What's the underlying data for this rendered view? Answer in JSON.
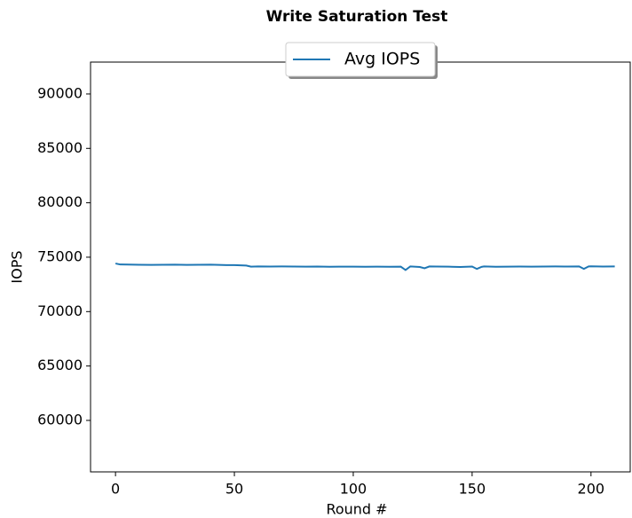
{
  "chart_data": {
    "type": "line",
    "title": "Write Saturation Test",
    "x_label": "Round #",
    "y_label": "IOPS",
    "x": [
      0,
      2,
      5,
      10,
      15,
      20,
      25,
      30,
      35,
      40,
      45,
      50,
      55,
      57,
      60,
      65,
      70,
      75,
      80,
      85,
      90,
      95,
      100,
      105,
      110,
      115,
      120,
      122,
      124,
      128,
      130,
      132,
      135,
      140,
      145,
      150,
      152,
      154,
      155,
      160,
      165,
      170,
      175,
      180,
      185,
      190,
      195,
      197,
      199,
      200,
      205,
      210
    ],
    "series": [
      {
        "name": "Avg IOPS",
        "color": "#1f77b4",
        "values": [
          74420,
          74330,
          74320,
          74300,
          74290,
          74300,
          74310,
          74290,
          74300,
          74310,
          74280,
          74270,
          74230,
          74130,
          74150,
          74140,
          74150,
          74140,
          74130,
          74140,
          74120,
          74130,
          74130,
          74120,
          74130,
          74120,
          74130,
          73820,
          74150,
          74100,
          73980,
          74150,
          74140,
          74130,
          74100,
          74140,
          73920,
          74110,
          74150,
          74120,
          74130,
          74140,
          74130,
          74140,
          74150,
          74140,
          74150,
          73930,
          74150,
          74160,
          74140,
          74150
        ]
      }
    ],
    "xlim": [
      -10.5,
      216.5
    ],
    "ylim": [
      55270,
      92930
    ],
    "xticks": [
      0,
      50,
      100,
      150,
      200
    ],
    "yticks": [
      60000,
      65000,
      70000,
      75000,
      80000,
      85000,
      90000
    ],
    "legend": "upper center"
  }
}
